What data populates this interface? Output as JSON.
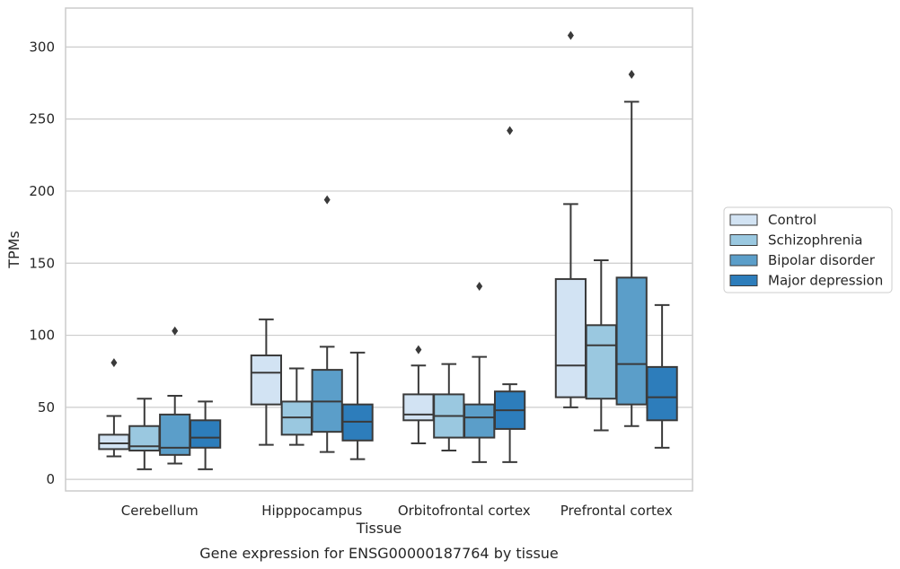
{
  "chart_data": {
    "type": "box",
    "title": "Gene expression for ENSG00000187764 by tissue",
    "xlabel": "Tissue",
    "ylabel": "TPMs",
    "ylim": [
      -8,
      327
    ],
    "yticks": [
      0,
      50,
      100,
      150,
      200,
      250,
      300
    ],
    "grid": true,
    "legend_position": "right",
    "categories": [
      "Cerebellum",
      "Hipppocampus",
      "Orbitofrontal cortex",
      "Prefrontal cortex"
    ],
    "series": [
      {
        "name": "Control",
        "color": "#d2e3f3",
        "boxes": [
          {
            "whislo": 16,
            "q1": 21,
            "med": 25,
            "q3": 31,
            "whishi": 44,
            "fliers": [
              81
            ]
          },
          {
            "whislo": 24,
            "q1": 52,
            "med": 74,
            "q3": 86,
            "whishi": 111,
            "fliers": []
          },
          {
            "whislo": 25,
            "q1": 41,
            "med": 45,
            "q3": 59,
            "whishi": 79,
            "fliers": [
              90
            ]
          },
          {
            "whislo": 50,
            "q1": 57,
            "med": 79,
            "q3": 139,
            "whishi": 191,
            "fliers": [
              308
            ]
          }
        ]
      },
      {
        "name": "Schizophrenia",
        "color": "#9ac8e0",
        "boxes": [
          {
            "whislo": 7,
            "q1": 20,
            "med": 23,
            "q3": 37,
            "whishi": 56,
            "fliers": []
          },
          {
            "whislo": 24,
            "q1": 31,
            "med": 43,
            "q3": 54,
            "whishi": 77,
            "fliers": []
          },
          {
            "whislo": 20,
            "q1": 29,
            "med": 44,
            "q3": 59,
            "whishi": 80,
            "fliers": []
          },
          {
            "whislo": 34,
            "q1": 56,
            "med": 93,
            "q3": 107,
            "whishi": 152,
            "fliers": []
          }
        ]
      },
      {
        "name": "Bipolar disorder",
        "color": "#5b9ec9",
        "boxes": [
          {
            "whislo": 11,
            "q1": 17,
            "med": 22,
            "q3": 45,
            "whishi": 58,
            "fliers": [
              103
            ]
          },
          {
            "whislo": 19,
            "q1": 33,
            "med": 54,
            "q3": 76,
            "whishi": 92,
            "fliers": [
              194
            ]
          },
          {
            "whislo": 12,
            "q1": 29,
            "med": 43,
            "q3": 52,
            "whishi": 85,
            "fliers": [
              134
            ]
          },
          {
            "whislo": 37,
            "q1": 52,
            "med": 80,
            "q3": 140,
            "whishi": 262,
            "fliers": [
              281
            ]
          }
        ]
      },
      {
        "name": "Major depression",
        "color": "#2d7dbb",
        "boxes": [
          {
            "whislo": 7,
            "q1": 22,
            "med": 29,
            "q3": 41,
            "whishi": 54,
            "fliers": []
          },
          {
            "whislo": 14,
            "q1": 27,
            "med": 40,
            "q3": 52,
            "whishi": 88,
            "fliers": []
          },
          {
            "whislo": 12,
            "q1": 35,
            "med": 48,
            "q3": 61,
            "whishi": 66,
            "fliers": [
              242
            ]
          },
          {
            "whislo": 22,
            "q1": 41,
            "med": 57,
            "q3": 78,
            "whishi": 121,
            "fliers": []
          }
        ]
      }
    ]
  }
}
